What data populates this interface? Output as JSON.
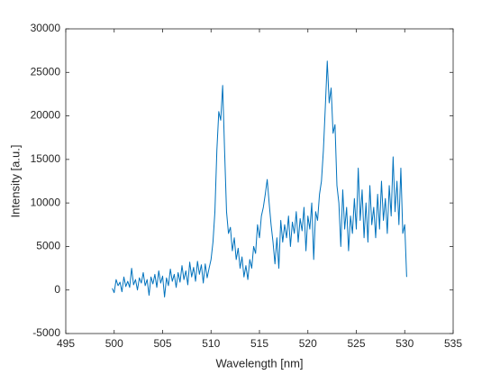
{
  "chart_data": {
    "type": "line",
    "x_label": "Wavelength [nm]",
    "y_label": "Intensity [a.u.]",
    "xlim": [
      495,
      535
    ],
    "xticks": [
      495,
      500,
      505,
      510,
      515,
      520,
      525,
      530,
      535
    ],
    "ylim": [
      -5000,
      30000
    ],
    "yticks": [
      -5000,
      0,
      5000,
      10000,
      15000,
      20000,
      25000,
      30000
    ],
    "grid": false,
    "series": [
      {
        "color": "#0072bd",
        "x": [
          499.8,
          500.0,
          500.2,
          500.4,
          500.6,
          500.8,
          501.0,
          501.2,
          501.4,
          501.6,
          501.8,
          502.0,
          502.2,
          502.4,
          502.6,
          502.8,
          503.0,
          503.2,
          503.4,
          503.6,
          503.8,
          504.0,
          504.2,
          504.4,
          504.6,
          504.8,
          505.0,
          505.2,
          505.4,
          505.6,
          505.8,
          506.0,
          506.2,
          506.4,
          506.6,
          506.8,
          507.0,
          507.2,
          507.4,
          507.6,
          507.8,
          508.0,
          508.2,
          508.4,
          508.6,
          508.8,
          509.0,
          509.2,
          509.4,
          509.6,
          509.8,
          510.0,
          510.2,
          510.4,
          510.6,
          510.8,
          511.0,
          511.2,
          511.4,
          511.6,
          511.8,
          512.0,
          512.2,
          512.4,
          512.6,
          512.8,
          513.0,
          513.2,
          513.4,
          513.6,
          513.8,
          514.0,
          514.2,
          514.4,
          514.6,
          514.8,
          515.0,
          515.2,
          515.4,
          515.6,
          515.8,
          516.0,
          516.2,
          516.4,
          516.6,
          516.8,
          517.0,
          517.2,
          517.4,
          517.6,
          517.8,
          518.0,
          518.2,
          518.4,
          518.6,
          518.8,
          519.0,
          519.2,
          519.4,
          519.6,
          519.8,
          520.0,
          520.2,
          520.4,
          520.6,
          520.8,
          521.0,
          521.2,
          521.4,
          521.6,
          521.8,
          522.0,
          522.2,
          522.4,
          522.6,
          522.8,
          523.0,
          523.2,
          523.4,
          523.6,
          523.8,
          524.0,
          524.2,
          524.4,
          524.6,
          524.8,
          525.0,
          525.2,
          525.4,
          525.6,
          525.8,
          526.0,
          526.2,
          526.4,
          526.6,
          526.8,
          527.0,
          527.2,
          527.4,
          527.6,
          527.8,
          528.0,
          528.2,
          528.4,
          528.6,
          528.8,
          529.0,
          529.2,
          529.4,
          529.6,
          529.8,
          530.0,
          530.2
        ],
        "values": [
          200,
          -300,
          1200,
          500,
          900,
          -200,
          1500,
          400,
          1000,
          300,
          2500,
          600,
          1200,
          0,
          1400,
          800,
          2000,
          500,
          1200,
          -600,
          1500,
          700,
          1800,
          300,
          2200,
          800,
          1600,
          -800,
          1400,
          500,
          2400,
          1000,
          1800,
          300,
          2000,
          900,
          2800,
          1200,
          2200,
          600,
          3200,
          1500,
          2600,
          1000,
          3300,
          1800,
          2900,
          800,
          3000,
          1400,
          2500,
          3500,
          5500,
          9000,
          16000,
          20500,
          19500,
          23500,
          16000,
          9000,
          6500,
          7200,
          4500,
          6000,
          3500,
          4800,
          2500,
          3800,
          1500,
          2800,
          1200,
          3500,
          2500,
          5000,
          4200,
          7500,
          6000,
          8500,
          9500,
          11000,
          12700,
          10000,
          7500,
          5500,
          3000,
          6000,
          2500,
          8000,
          5500,
          7500,
          6000,
          8500,
          5000,
          7800,
          6500,
          9000,
          5500,
          8200,
          6800,
          9500,
          4500,
          8500,
          7000,
          10000,
          3500,
          9000,
          8000,
          11000,
          12500,
          16000,
          21000,
          26300,
          21500,
          23200,
          18000,
          19000,
          12000,
          10000,
          5000,
          11500,
          7000,
          9500,
          4500,
          8500,
          6500,
          10500,
          7000,
          14000,
          8000,
          11500,
          6000,
          10000,
          5500,
          12000,
          7500,
          9500,
          6000,
          11000,
          7000,
          12500,
          8000,
          10500,
          6500,
          12000,
          8500,
          15300,
          9000,
          12500,
          7500,
          14000,
          6500,
          7500,
          1500
        ]
      }
    ]
  }
}
